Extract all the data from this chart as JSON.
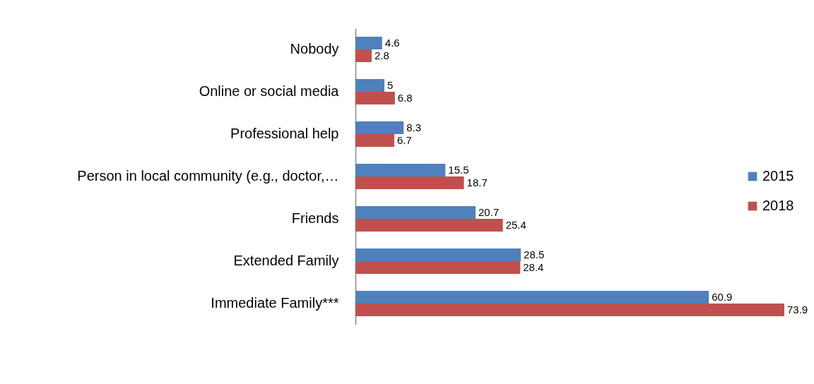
{
  "chart_data": {
    "type": "bar",
    "orientation": "horizontal",
    "categories": [
      "Nobody",
      "Online or social media",
      "Professional help",
      "Person in local community (e.g., doctor,…",
      "Friends",
      "Extended Family",
      "Immediate Family***"
    ],
    "series": [
      {
        "name": "2015",
        "color": "#4f81bd",
        "values": [
          4.6,
          5,
          8.3,
          15.5,
          20.7,
          28.5,
          60.9
        ]
      },
      {
        "name": "2018",
        "color": "#c0504d",
        "values": [
          2.8,
          6.8,
          6.7,
          18.7,
          25.4,
          28.4,
          73.9
        ]
      }
    ],
    "data_labels": true,
    "legend": "right",
    "grid": false
  }
}
